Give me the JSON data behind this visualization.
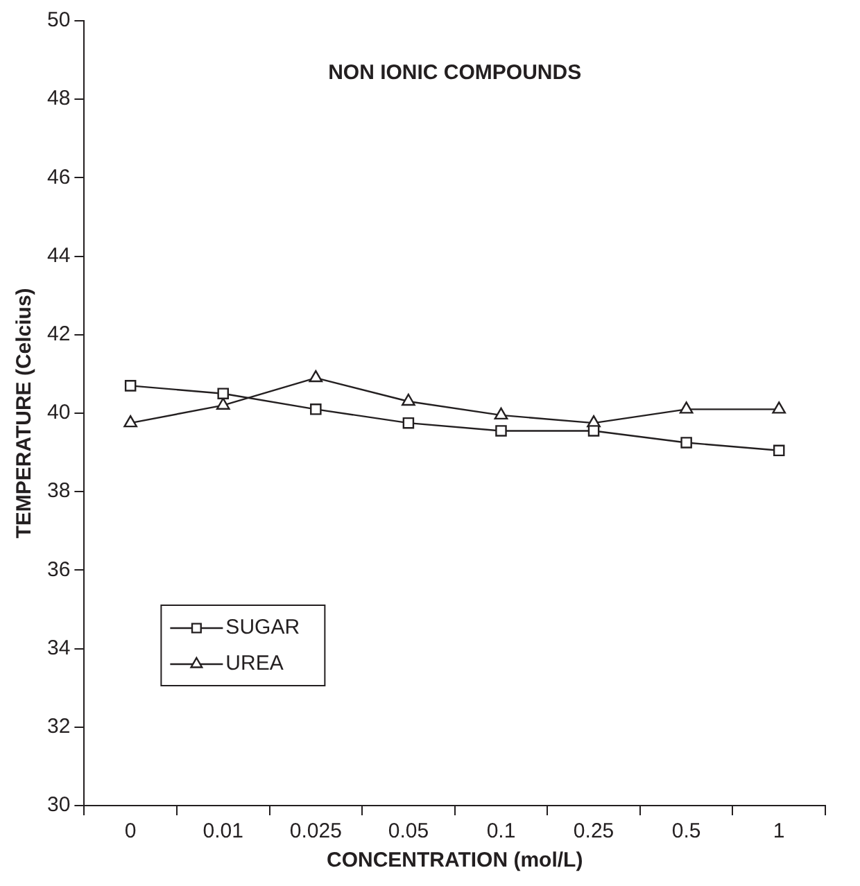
{
  "chart_data": {
    "type": "line",
    "title": "NON IONIC COMPOUNDS",
    "xlabel": "CONCENTRATION (mol/L)",
    "ylabel": "TEMPERATURE (Celcius)",
    "categories": [
      "0",
      "0.01",
      "0.025",
      "0.05",
      "0.1",
      "0.25",
      "0.5",
      "1"
    ],
    "series": [
      {
        "name": "SUGAR",
        "color": "#231f20",
        "marker": "square",
        "values": [
          40.7,
          40.5,
          40.1,
          39.75,
          39.55,
          39.55,
          39.25,
          39.05
        ]
      },
      {
        "name": "UREA",
        "color": "#231f20",
        "marker": "triangle",
        "values": [
          39.75,
          40.2,
          40.9,
          40.3,
          39.95,
          39.75,
          40.1,
          40.1
        ]
      }
    ],
    "ylim": [
      30,
      50
    ],
    "yticks": [
      30,
      32,
      34,
      36,
      38,
      40,
      42,
      44,
      46,
      48,
      50
    ],
    "grid": false,
    "legend": "bottom left",
    "line_style": "solid"
  }
}
